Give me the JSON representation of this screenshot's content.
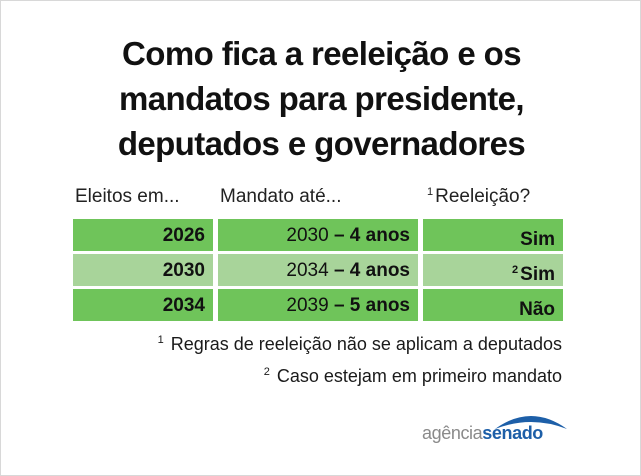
{
  "title": {
    "line1": "Como fica a reeleição e os",
    "line2": "mandatos para presidente,",
    "line3": "deputados e governadores"
  },
  "table": {
    "headers": {
      "col1": "Eleitos em...",
      "col2": "Mandato até...",
      "col3_note": "1",
      "col3": "Reeleição?"
    },
    "rows": [
      {
        "year": "2026",
        "end": "2030",
        "duration": "– 4 anos",
        "reelection_note": "",
        "reelection": "Sim",
        "color": "#6fc45a"
      },
      {
        "year": "2030",
        "end": "2034",
        "duration": "– 4 anos",
        "reelection_note": "2",
        "reelection": "Sim",
        "color": "#a8d49a"
      },
      {
        "year": "2034",
        "end": "2039",
        "duration": "– 5 anos",
        "reelection_note": "",
        "reelection": "Não",
        "color": "#6fc45a"
      }
    ]
  },
  "footnotes": [
    {
      "mark": "1",
      "text": "Regras de reeleição não se aplicam a deputados"
    },
    {
      "mark": "2",
      "text": "Caso estejam em primeiro mandato"
    }
  ],
  "logo": {
    "part1": "agência",
    "part2": "senado",
    "icon": "agencia-senado-arc-icon",
    "color_gray": "#8a8a8a",
    "color_blue": "#1d5fa8"
  }
}
